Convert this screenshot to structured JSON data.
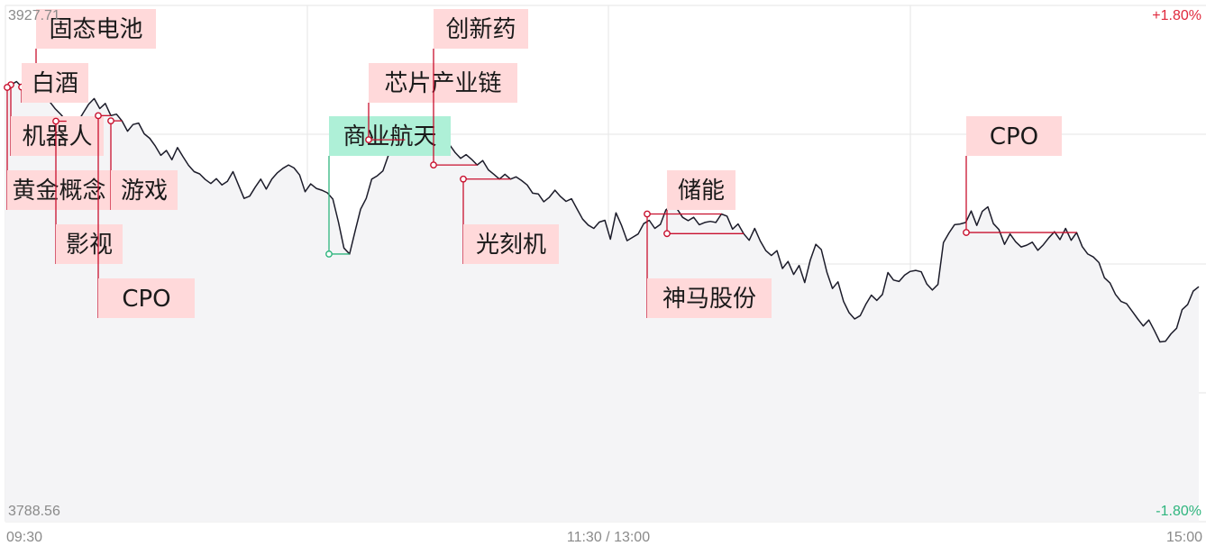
{
  "chart_data": {
    "type": "line",
    "y_left_labels": {
      "top": "3927.71",
      "bottom": "3788.56"
    },
    "y_right_labels": {
      "top": "+1.80%",
      "bottom": "-1.80%"
    },
    "x_labels": [
      "09:30",
      "11:30 / 13:00",
      "15:00"
    ],
    "grid": true,
    "ylim": [
      3788.56,
      3927.71
    ],
    "series": [
      {
        "values": [
          3905.6,
          3906.3,
          3907.2,
          3905.7,
          3902.9,
          3904.2,
          3903.8,
          3903.3,
          3901.7,
          3899.8,
          3898.3,
          3896.5,
          3893.6,
          3896.2,
          3898.7,
          3901.1,
          3902.6,
          3899.9,
          3901.3,
          3898.0,
          3898.4,
          3896.6,
          3893.8,
          3895.6,
          3896.0,
          3893.1,
          3891.9,
          3889.8,
          3887.3,
          3888.6,
          3886.1,
          3889.4,
          3886.9,
          3884.6,
          3882.9,
          3882.3,
          3880.8,
          3879.7,
          3881.0,
          3879.3,
          3880.3,
          3882.9,
          3879.3,
          3875.7,
          3876.3,
          3878.7,
          3880.9,
          3878.2,
          3880.9,
          3882.6,
          3883.8,
          3884.7,
          3883.9,
          3882.0,
          3877.5,
          3879.6,
          3878.4,
          3877.9,
          3877.2,
          3875.5,
          3869.3,
          3862.3,
          3860.7,
          3866.9,
          3872.8,
          3875.7,
          3880.9,
          3881.8,
          3883.1,
          3887.3,
          3888.1,
          3890.2,
          3891.5,
          3891.7,
          3892.7,
          3893.4,
          3893.4,
          3892.0,
          3892.4,
          3891.5,
          3890.2,
          3888.1,
          3886.5,
          3887.5,
          3886.2,
          3884.7,
          3885.9,
          3883.4,
          3882.2,
          3880.9,
          3882.2,
          3880.9,
          3881.5,
          3880.5,
          3879.3,
          3877.1,
          3876.9,
          3874.8,
          3876.0,
          3877.9,
          3876.2,
          3874.9,
          3875.6,
          3872.8,
          3870.1,
          3868.5,
          3867.6,
          3869.3,
          3869.8,
          3864.7,
          3871.8,
          3868.4,
          3864.3,
          3865.2,
          3866.1,
          3868.9,
          3869.8,
          3867.6,
          3868.7,
          3872.6,
          3873.6,
          3872.9,
          3870.6,
          3869.7,
          3870.6,
          3868.6,
          3869.2,
          3869.5,
          3869.2,
          3871.5,
          3870.9,
          3867.4,
          3868.8,
          3866.2,
          3864.4,
          3867.6,
          3864.2,
          3861.6,
          3860.3,
          3861.6,
          3856.8,
          3858.7,
          3855.2,
          3857.6,
          3853.0,
          3859.0,
          3863.3,
          3861.9,
          3855.8,
          3851.4,
          3853.2,
          3847.9,
          3844.9,
          3843.2,
          3844.1,
          3847.1,
          3849.6,
          3848.2,
          3849.8,
          3855.7,
          3853.7,
          3853.3,
          3855.0,
          3856.0,
          3856.3,
          3855.9,
          3852.6,
          3851.0,
          3852.5,
          3863.8,
          3866.4,
          3868.6,
          3868.8,
          3869.2,
          3872.3,
          3868.4,
          3872.2,
          3873.4,
          3868.9,
          3867.3,
          3863.3,
          3866.1,
          3864.0,
          3862.6,
          3863.1,
          3863.9,
          3861.7,
          3863.2,
          3865.1,
          3866.7,
          3864.6,
          3867.6,
          3864.4,
          3866.5,
          3862.7,
          3860.7,
          3859.9,
          3858.4,
          3854.3,
          3852.9,
          3849.8,
          3847.9,
          3847.3,
          3845.3,
          3843.2,
          3841.3,
          3842.9,
          3840.1,
          3837.0,
          3837.2,
          3839.2,
          3840.7,
          3845.7,
          3847.1,
          3850.7,
          3851.9
        ]
      }
    ],
    "markers": [
      {
        "label": "固态电池",
        "index": 6,
        "style": "red"
      },
      {
        "label": "白酒",
        "index": 3,
        "style": "red"
      },
      {
        "label": "机器人",
        "index": 1,
        "style": "red"
      },
      {
        "label": "黄金概念",
        "index": 0,
        "style": "red"
      },
      {
        "label": "游戏",
        "index": 21,
        "style": "red"
      },
      {
        "label": "影视",
        "index": 11,
        "style": "red"
      },
      {
        "label": "CPO",
        "index": 19,
        "style": "red"
      },
      {
        "label": "商业航天",
        "index": 62,
        "style": "green"
      },
      {
        "label": "芯片产业链",
        "index": 72,
        "style": "red"
      },
      {
        "label": "创新药",
        "index": 85,
        "style": "red"
      },
      {
        "label": "光刻机",
        "index": 91,
        "style": "red"
      },
      {
        "label": "储能",
        "index": 133,
        "style": "red"
      },
      {
        "label": "神马股份",
        "index": 129,
        "style": "red"
      },
      {
        "label": "CPO",
        "index": 193,
        "style": "red"
      }
    ],
    "colors": {
      "line": "#1c1c2a",
      "area": "#f4f4f6",
      "grid": "#e6e6e6",
      "marker_red": "#c8102e",
      "marker_green": "#2fb57e",
      "tag_red_bg": "#ffd9da",
      "tag_green_bg": "#aef0d7"
    }
  }
}
